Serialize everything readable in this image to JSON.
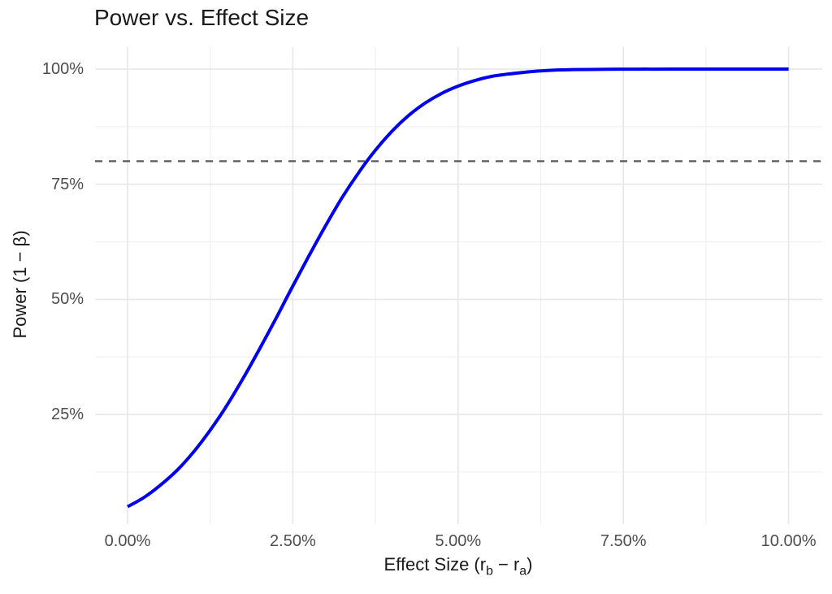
{
  "page": {
    "background": "#ffffff"
  },
  "chart_data": {
    "type": "line",
    "title": "Power vs. Effect Size",
    "xlabel": "Effect Size (rb − ra)",
    "xlabel_parts": [
      "Effect Size (r",
      "b",
      " − r",
      "a",
      ")"
    ],
    "ylabel": "Power (1 − β)",
    "xlim": [
      0,
      10
    ],
    "ylim": [
      0,
      100
    ],
    "grid": "on",
    "legend": "none",
    "x_ticks": [
      {
        "value": 0,
        "label": "0.00%"
      },
      {
        "value": 2.5,
        "label": "2.50%"
      },
      {
        "value": 5,
        "label": "5.00%"
      },
      {
        "value": 7.5,
        "label": "7.50%"
      },
      {
        "value": 10,
        "label": "10.00%"
      }
    ],
    "y_ticks": [
      {
        "value": 25,
        "label": "25%"
      },
      {
        "value": 50,
        "label": "50%"
      },
      {
        "value": 75,
        "label": "75%"
      },
      {
        "value": 100,
        "label": "100%"
      }
    ],
    "x_minor": [
      1.25,
      3.75,
      6.25,
      8.75
    ],
    "y_minor": [
      12.5,
      37.5,
      62.5,
      87.5
    ],
    "threshold": {
      "value": 80,
      "style": "dashed",
      "color": "#595959"
    },
    "series": [
      {
        "name": "power-curve",
        "color": "#0000ee",
        "x": [
          0,
          0.25,
          0.5,
          0.75,
          1,
          1.25,
          1.5,
          1.75,
          2,
          2.25,
          2.5,
          2.75,
          3,
          3.25,
          3.5,
          3.75,
          4,
          4.25,
          4.5,
          4.75,
          5,
          5.25,
          5.5,
          5.75,
          6,
          6.25,
          6.5,
          6.75,
          7,
          7.25,
          7.5,
          7.75,
          8,
          8.25,
          8.5,
          8.75,
          9,
          9.25,
          9.5,
          9.75,
          10
        ],
        "y": [
          5.0,
          7.0,
          9.7,
          12.9,
          16.9,
          21.6,
          26.9,
          32.9,
          39.3,
          46.0,
          52.9,
          59.6,
          66.1,
          72.2,
          77.6,
          82.4,
          86.5,
          89.9,
          92.6,
          94.7,
          96.3,
          97.5,
          98.4,
          98.9,
          99.3,
          99.6,
          99.8,
          99.9,
          99.92,
          99.96,
          99.98,
          99.99,
          99.99,
          100,
          100,
          100,
          100,
          100,
          100,
          100,
          100
        ]
      }
    ]
  }
}
